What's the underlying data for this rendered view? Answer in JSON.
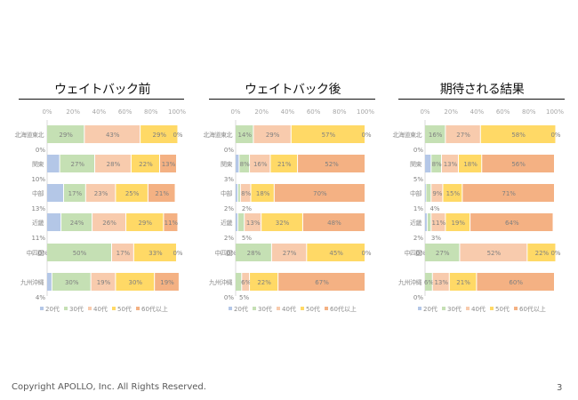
{
  "page": {
    "footer": "Copyright APOLLO, Inc. All Rights Reserved.",
    "page_number": "3"
  },
  "colors": {
    "20代": "#b4c7e7",
    "30代": "#c5e0b4",
    "40代": "#f8cbad",
    "50代": "#ffd966",
    "60代以上": "#f4b183",
    "label_text": "#7f7f7f",
    "axis": "#d9d9d9"
  },
  "chart_data": [
    {
      "type": "bar",
      "orientation": "horizontal-stacked-100",
      "title": "ウェイトバック前",
      "categories": [
        "北海道東北",
        "関東",
        "中部",
        "近畿",
        "中四国",
        "九州沖縄"
      ],
      "xticks": [
        "0%",
        "20%",
        "40%",
        "60%",
        "80%",
        "100%"
      ],
      "xlim": [
        0,
        100
      ],
      "legend": [
        "20代",
        "30代",
        "40代",
        "50代",
        "60代以上"
      ],
      "legend_position": "bottom",
      "series": [
        {
          "name": "20代",
          "values": [
            0,
            10,
            13,
            11,
            0,
            4
          ]
        },
        {
          "name": "30代",
          "values": [
            29,
            27,
            17,
            24,
            50,
            30
          ]
        },
        {
          "name": "40代",
          "values": [
            43,
            28,
            23,
            26,
            17,
            19
          ]
        },
        {
          "name": "50代",
          "values": [
            29,
            22,
            25,
            29,
            33,
            30
          ]
        },
        {
          "name": "60代以上",
          "values": [
            0,
            13,
            21,
            11,
            0,
            19
          ]
        }
      ]
    },
    {
      "type": "bar",
      "orientation": "horizontal-stacked-100",
      "title": "ウェイトバック後",
      "categories": [
        "北海道東北",
        "関東",
        "中部",
        "近畿",
        "中四国",
        "九州沖縄"
      ],
      "xticks": [
        "0%",
        "20%",
        "40%",
        "60%",
        "80%",
        "100%"
      ],
      "xlim": [
        0,
        100
      ],
      "legend": [
        "20代",
        "30代",
        "40代",
        "50代",
        "60代以上"
      ],
      "legend_position": "bottom",
      "series": [
        {
          "name": "20代",
          "values": [
            0,
            3,
            2,
            2,
            0,
            0
          ]
        },
        {
          "name": "30代",
          "values": [
            14,
            8,
            2,
            5,
            28,
            5
          ]
        },
        {
          "name": "40代",
          "values": [
            29,
            16,
            8,
            13,
            27,
            6
          ]
        },
        {
          "name": "50代",
          "values": [
            57,
            21,
            18,
            32,
            45,
            22
          ]
        },
        {
          "name": "60代以上",
          "values": [
            0,
            52,
            70,
            48,
            0,
            67
          ]
        }
      ]
    },
    {
      "type": "bar",
      "orientation": "horizontal-stacked-100",
      "title": "期待される結果",
      "categories": [
        "北海道東北",
        "関東",
        "中部",
        "近畿",
        "中四国",
        "九州沖縄"
      ],
      "xticks": [
        "0%",
        "20%",
        "40%",
        "60%",
        "80%",
        "100%"
      ],
      "xlim": [
        0,
        100
      ],
      "legend": [
        "20代",
        "30代",
        "40代",
        "50代",
        "60代以上"
      ],
      "legend_position": "bottom",
      "series": [
        {
          "name": "20代",
          "values": [
            0,
            5,
            1,
            2,
            0,
            0
          ]
        },
        {
          "name": "30代",
          "values": [
            16,
            8,
            4,
            3,
            27,
            6
          ]
        },
        {
          "name": "40代",
          "values": [
            27,
            13,
            9,
            11,
            52,
            13
          ]
        },
        {
          "name": "50代",
          "values": [
            58,
            18,
            15,
            19,
            22,
            21
          ]
        },
        {
          "name": "60代以上",
          "values": [
            0,
            56,
            71,
            64,
            0,
            60
          ]
        }
      ]
    }
  ]
}
